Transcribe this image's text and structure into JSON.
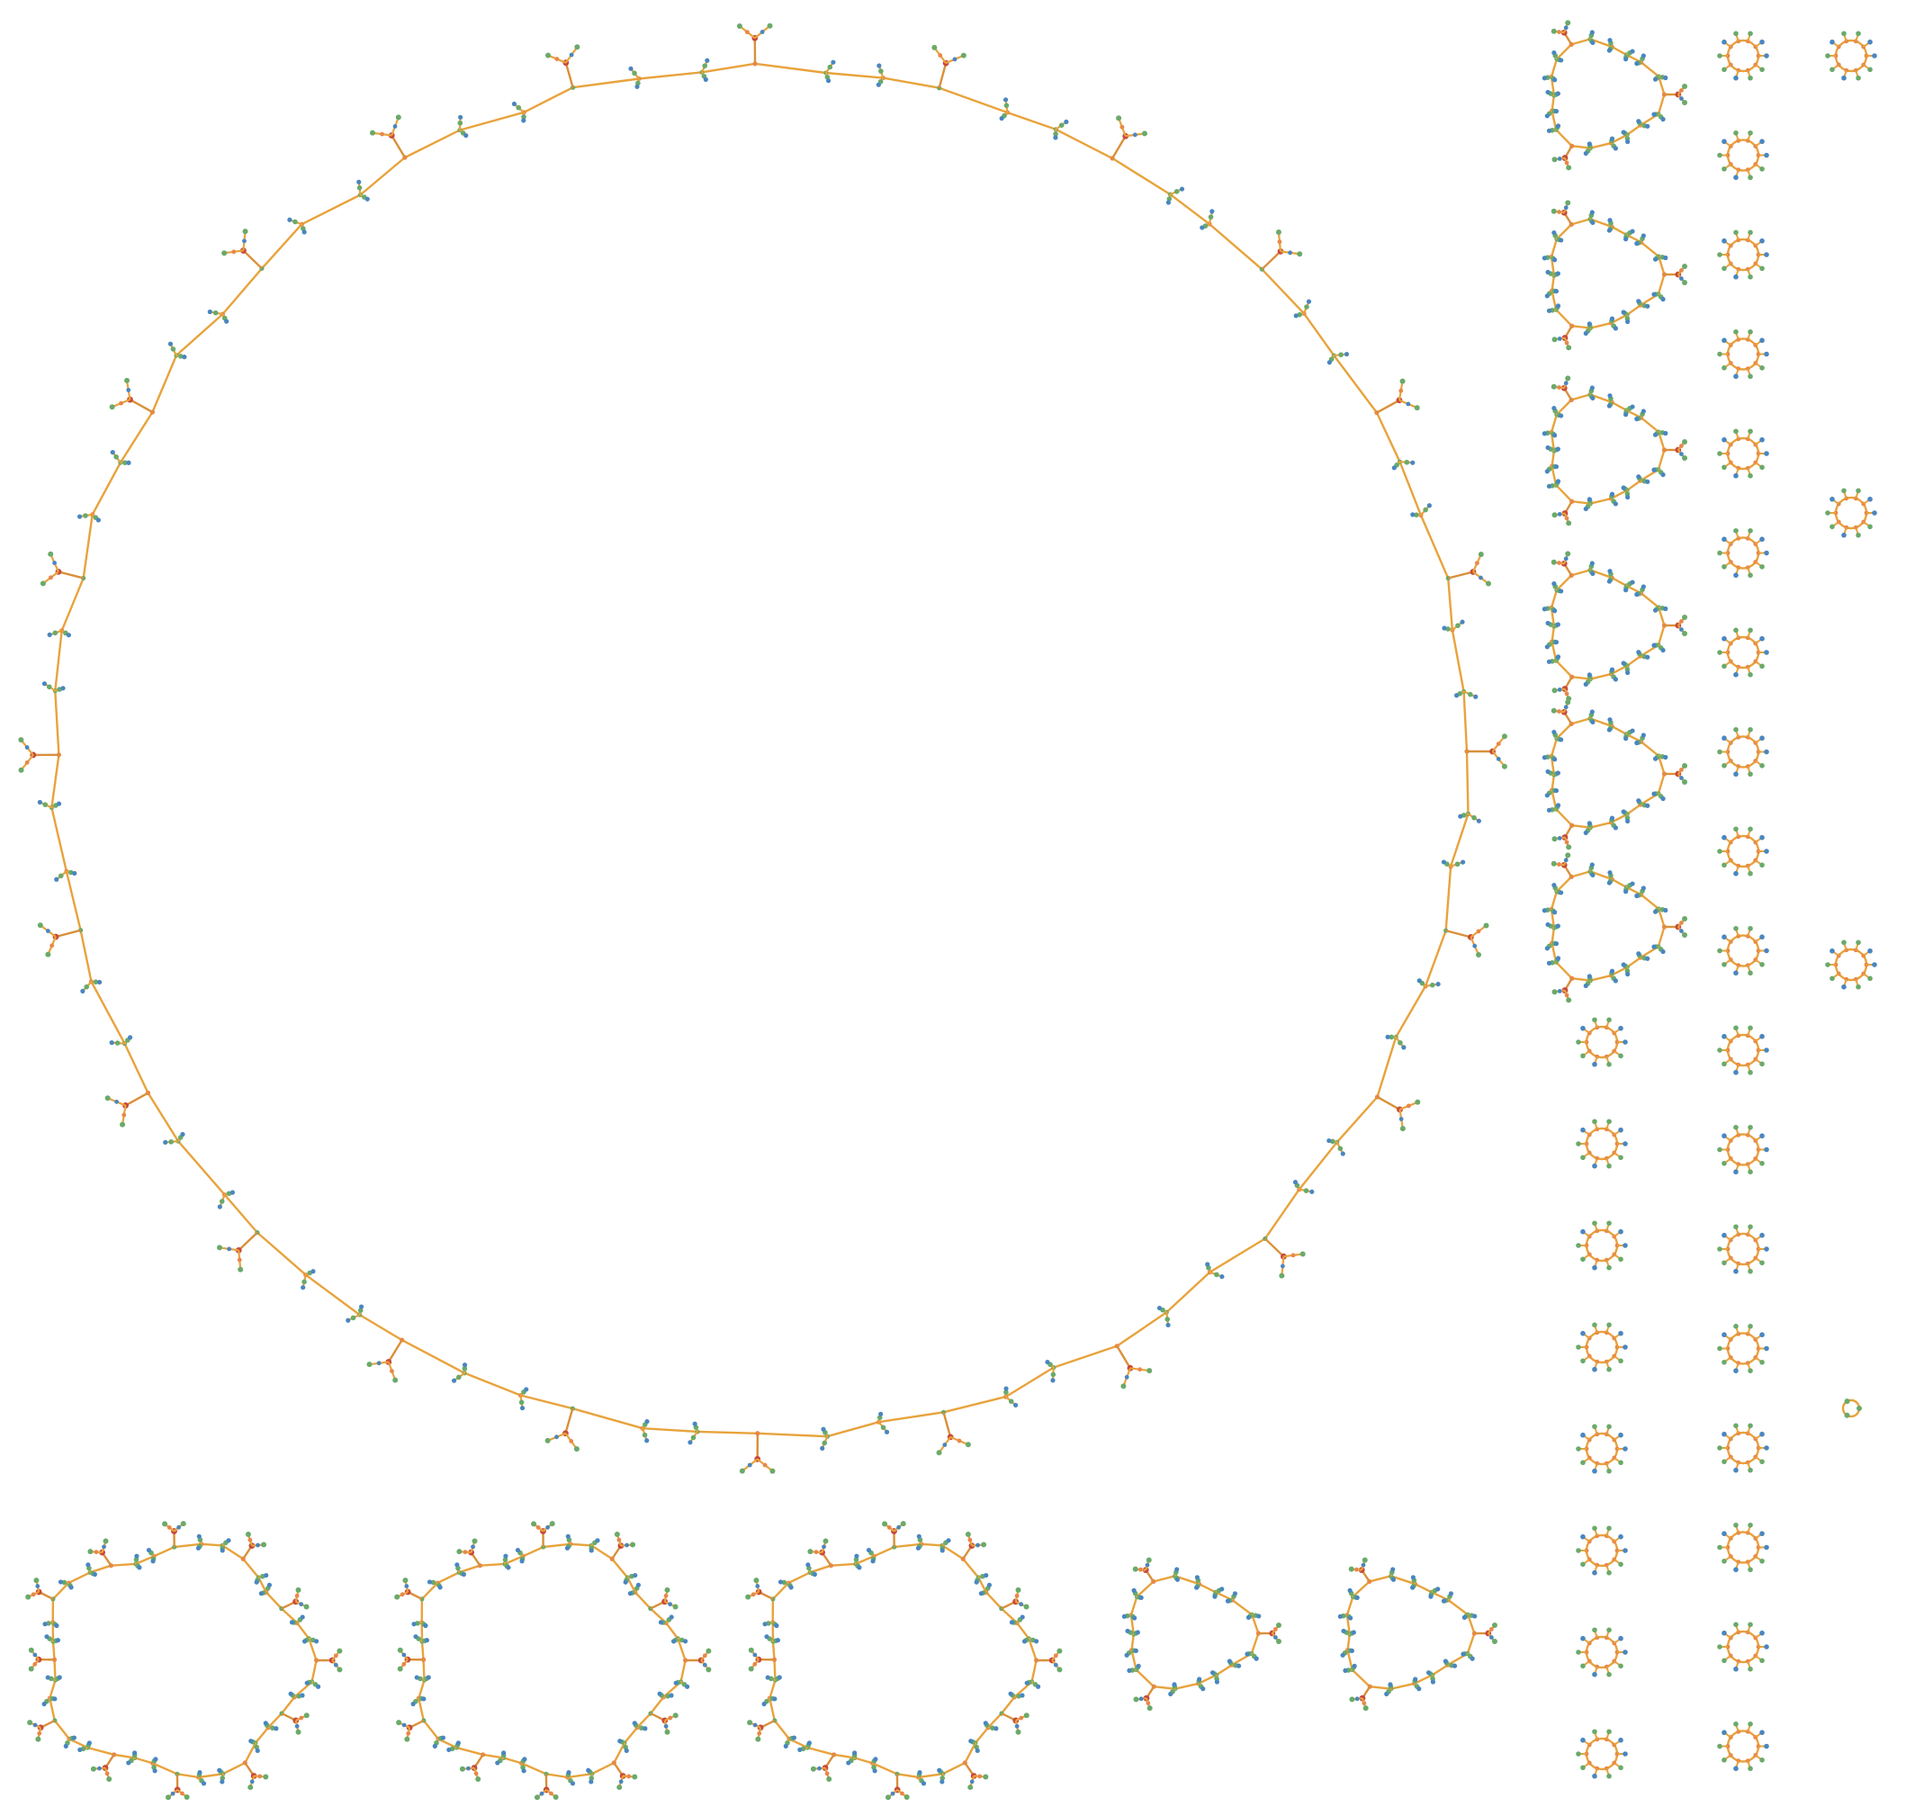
{
  "title": "",
  "colors": {
    "background": "#ffffff",
    "edge": "#e8a33c",
    "edge_secondary": "#d9903a",
    "node_default": "#6aaa6a",
    "node_blue": "#4a86c0",
    "node_orange": "#e8884a",
    "node_red": "#c8473c"
  },
  "components": {
    "large_ring": {
      "count": 1,
      "motif_count": 72,
      "branch_every": 3
    },
    "medium_rings": {
      "count": 3,
      "motif_count": 36,
      "branch_every": 3
    },
    "small_triangular_rings": {
      "count": 8,
      "motif_count": 18,
      "branch_every": 6
    },
    "tiny_rings": {
      "count": 28,
      "motif_count": 10
    },
    "isolated_motif": {
      "count": 1
    }
  }
}
